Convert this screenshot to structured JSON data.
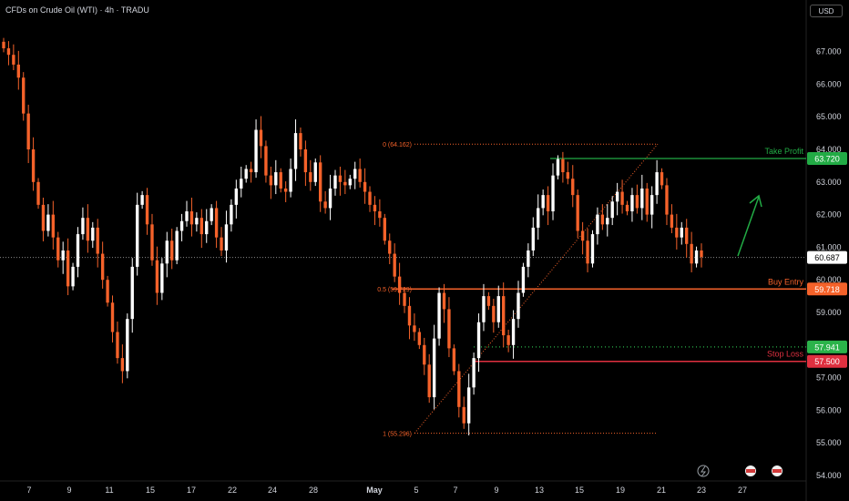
{
  "header": {
    "symbol_title": "CFDs on Crude Oil (WTI) · 4h · TRADU",
    "currency_button": "USD"
  },
  "colors": {
    "background": "#000000",
    "up_candle": "#ffffff",
    "down_candle": "#f5622a",
    "take_profit": "#22ab45",
    "buy_entry": "#f5622a",
    "stop_loss": "#e03040",
    "support": "#2bb34a",
    "current_price": "#ffffff",
    "axis_text": "#d1d4dc",
    "fib": "#f5622a"
  },
  "chart_data": {
    "type": "candlestick",
    "timeframe": "4h",
    "ylim": [
      54.0,
      68.0
    ],
    "y_ticks": [
      "54.000",
      "55.000",
      "56.000",
      "57.000",
      "58.000",
      "59.000",
      "60.000",
      "61.000",
      "62.000",
      "63.000",
      "64.000",
      "65.000",
      "66.000",
      "67.000"
    ],
    "x_ticks": [
      "7",
      "9",
      "11",
      "15",
      "17",
      "22",
      "24",
      "28",
      "May",
      "5",
      "7",
      "9",
      "13",
      "15",
      "19",
      "21",
      "23",
      "27"
    ],
    "current_price": "60.687",
    "fib_levels": [
      {
        "label": "0 (64.162)",
        "value": 64.162
      },
      {
        "label": "0.5 (59.729)",
        "value": 59.729
      },
      {
        "label": "1 (55.296)",
        "value": 55.296
      }
    ],
    "levels": [
      {
        "name": "Take Profit",
        "value": 63.72,
        "badge": "63.720"
      },
      {
        "name": "Buy Entry",
        "value": 59.718,
        "badge": "59.718"
      },
      {
        "name": "Stop Loss",
        "value": 57.5,
        "badge": "57.500"
      },
      {
        "name": "",
        "value": 57.941,
        "badge": "57.941"
      }
    ],
    "close_path": [
      67.1,
      66.9,
      66.6,
      66.2,
      65.1,
      64.0,
      63.0,
      62.3,
      61.5,
      62.0,
      61.3,
      60.6,
      60.9,
      59.8,
      60.4,
      61.4,
      61.9,
      61.2,
      61.6,
      60.8,
      60.0,
      59.3,
      58.4,
      57.6,
      57.2,
      58.8,
      60.4,
      62.3,
      62.6,
      61.7,
      60.6,
      59.6,
      60.5,
      61.2,
      60.6,
      61.5,
      61.8,
      62.1,
      61.7,
      61.9,
      61.4,
      61.8,
      62.2,
      61.3,
      60.9,
      61.7,
      62.3,
      62.8,
      63.1,
      63.4,
      63.3,
      64.6,
      64.1,
      63.2,
      62.9,
      63.3,
      62.8,
      62.7,
      63.4,
      64.5,
      64.0,
      63.3,
      63.0,
      63.6,
      62.4,
      62.2,
      62.8,
      63.2,
      63.0,
      62.9,
      63.1,
      63.4,
      63.0,
      62.7,
      62.3,
      62.1,
      61.9,
      61.2,
      60.8,
      60.1,
      59.6,
      59.2,
      58.6,
      58.4,
      58.0,
      57.4,
      56.4,
      58.2,
      59.6,
      59.1,
      57.9,
      57.2,
      56.1,
      55.6,
      56.7,
      57.6,
      58.7,
      59.5,
      59.2,
      58.7,
      59.5,
      58.3,
      58.0,
      58.8,
      59.6,
      60.4,
      60.9,
      61.6,
      62.2,
      62.6,
      62.1,
      63.2,
      63.7,
      63.3,
      63.1,
      62.6,
      61.5,
      61.2,
      60.5,
      61.4,
      62.0,
      61.7,
      61.9,
      62.4,
      62.7,
      62.3,
      62.1,
      62.6,
      62.2,
      62.8,
      62.0,
      62.6,
      63.3,
      62.9,
      62.0,
      61.6,
      61.3,
      61.6,
      61.1,
      60.5,
      60.9,
      60.7
    ]
  }
}
